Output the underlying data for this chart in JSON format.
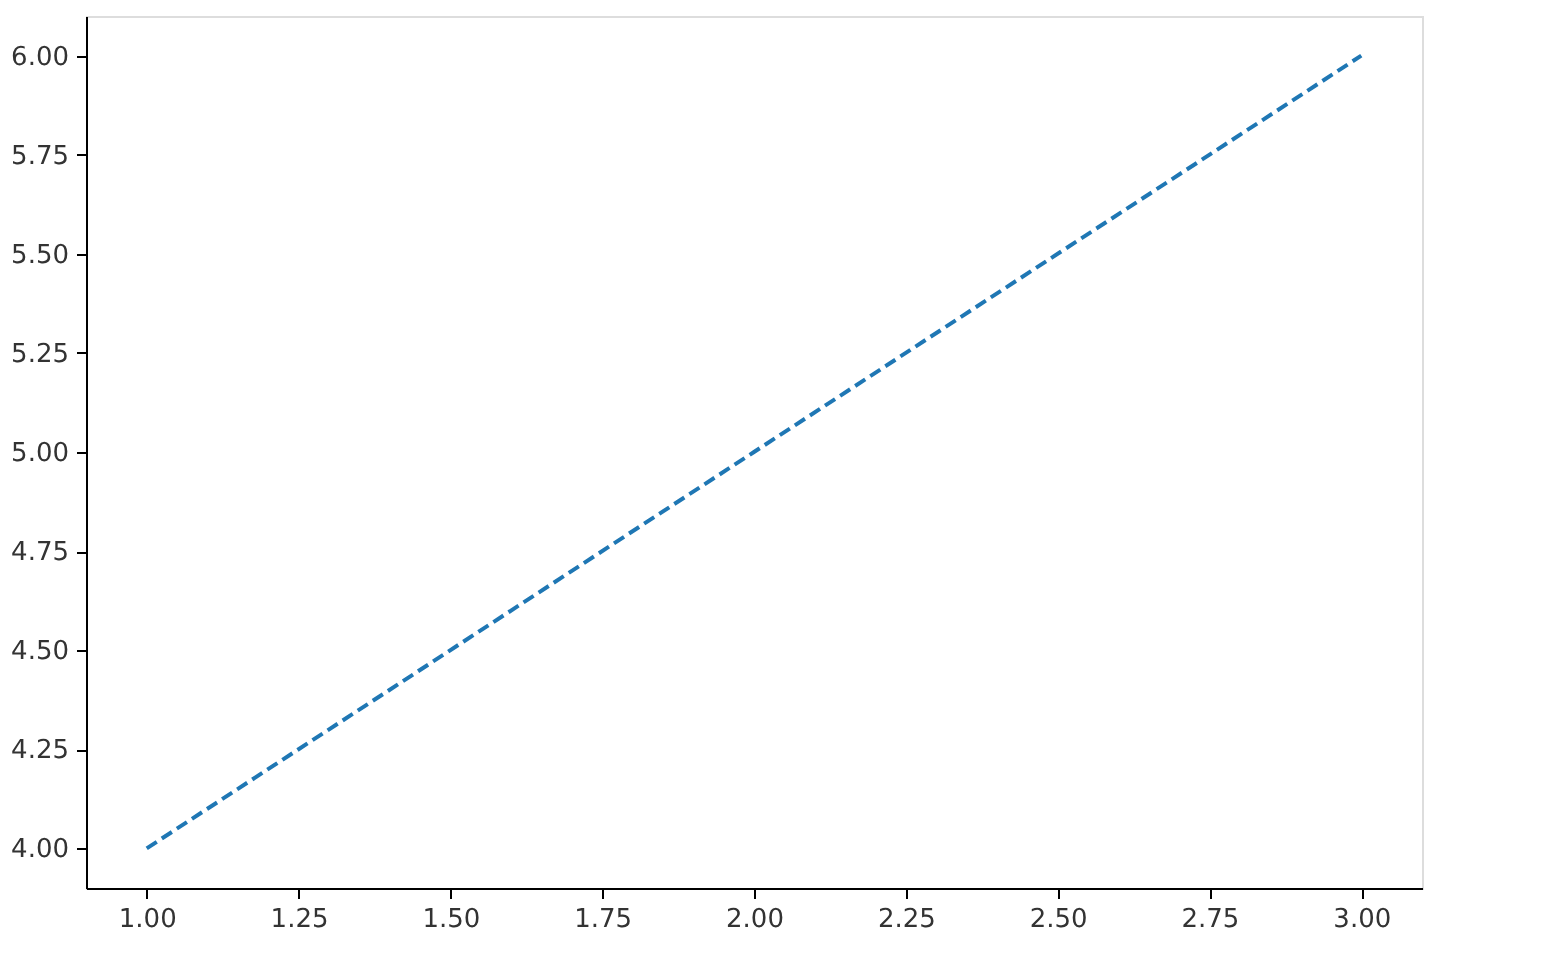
{
  "chart_data": {
    "type": "line",
    "x": [
      1,
      2,
      3
    ],
    "series": [
      {
        "color": "#1f77b4",
        "values": [
          4,
          5,
          6
        ]
      }
    ],
    "xlim": [
      0.9,
      3.1
    ],
    "xticks": [
      {
        "value": 1,
        "label": "1.00"
      },
      {
        "value": 1.25,
        "label": "1.25"
      },
      {
        "value": 1.5,
        "label": "1.50"
      },
      {
        "value": 1.75,
        "label": "1.75"
      },
      {
        "value": 2,
        "label": "2.00"
      },
      {
        "value": 2.25,
        "label": "2.25"
      },
      {
        "value": 2.5,
        "label": "2.50"
      },
      {
        "value": 2.75,
        "label": "2.75"
      },
      {
        "value": 3,
        "label": "3.00"
      }
    ],
    "ylim": [
      3.9,
      6.1
    ],
    "yticks": [
      {
        "value": 4,
        "label": "4.00"
      },
      {
        "value": 4.25,
        "label": "4.25"
      },
      {
        "value": 4.5,
        "label": "4.50"
      },
      {
        "value": 4.75,
        "label": "4.75"
      },
      {
        "value": 5,
        "label": "5.00"
      },
      {
        "value": 5.25,
        "label": "5.25"
      },
      {
        "value": 5.5,
        "label": "5.50"
      },
      {
        "value": 5.75,
        "label": "5.75"
      },
      {
        "value": 6,
        "label": "6.00"
      }
    ],
    "grid": false,
    "marker": "none",
    "line_style": "dashed"
  }
}
